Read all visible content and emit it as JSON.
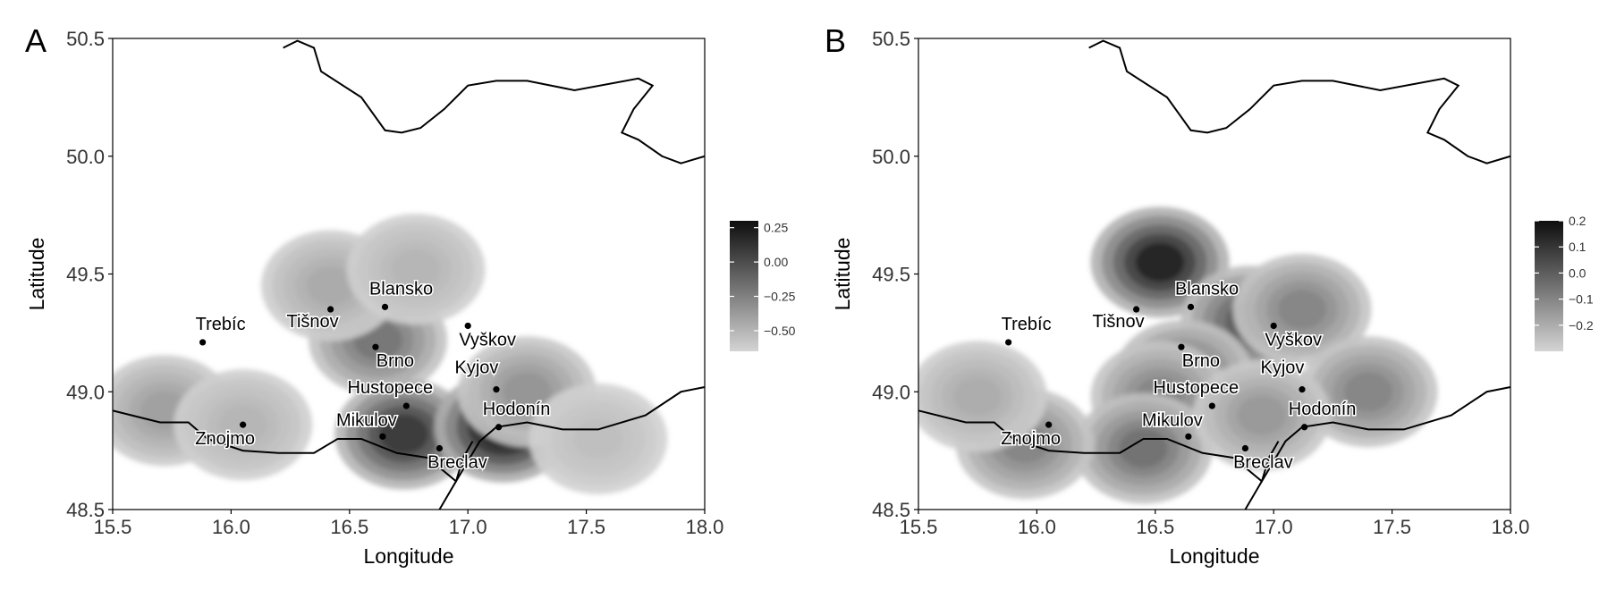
{
  "chart_data": [
    {
      "type": "heatmap",
      "panel_label": "A",
      "xlabel": "Longitude",
      "ylabel": "Latitude",
      "xlim": [
        15.5,
        18.0
      ],
      "ylim": [
        48.5,
        50.5
      ],
      "x_ticks": [
        "15.5",
        "16.0",
        "16.5",
        "17.0",
        "17.5",
        "18.0"
      ],
      "y_ticks": [
        "48.5",
        "49.0",
        "49.5",
        "50.0",
        "50.5"
      ],
      "grid": false,
      "legend": {
        "placement": "right",
        "range": [
          -0.65,
          0.3
        ],
        "ticks": [
          {
            "value": 0.25,
            "label": "0.25"
          },
          {
            "value": 0.0,
            "label": "0.00"
          },
          {
            "value": -0.25,
            "label": "−0.25"
          },
          {
            "value": -0.5,
            "label": "−0.50"
          }
        ]
      },
      "cities": [
        {
          "name": "Trebíc",
          "lon": 15.88,
          "lat": 49.21
        },
        {
          "name": "Tišnov",
          "lon": 16.42,
          "lat": 49.35
        },
        {
          "name": "Blansko",
          "lon": 16.65,
          "lat": 49.36
        },
        {
          "name": "Brno",
          "lon": 16.61,
          "lat": 49.19
        },
        {
          "name": "Vyškov",
          "lon": 17.0,
          "lat": 49.28
        },
        {
          "name": "Kyjov",
          "lon": 17.12,
          "lat": 49.01
        },
        {
          "name": "Hustopece",
          "lon": 16.74,
          "lat": 48.94
        },
        {
          "name": "Hodonín",
          "lon": 17.13,
          "lat": 48.85
        },
        {
          "name": "Znojmo",
          "lon": 16.05,
          "lat": 48.86
        },
        {
          "name": "Mikulov",
          "lon": 16.64,
          "lat": 48.81
        },
        {
          "name": "Breclav",
          "lon": 16.88,
          "lat": 48.76
        }
      ],
      "density_peaks": [
        {
          "lon": 16.62,
          "lat": 49.22,
          "value": -0.2
        },
        {
          "lon": 16.73,
          "lat": 48.82,
          "value": 0.1
        },
        {
          "lon": 17.15,
          "lat": 48.85,
          "value": 0.3
        },
        {
          "lon": 16.42,
          "lat": 49.45,
          "value": -0.45
        },
        {
          "lon": 16.78,
          "lat": 49.52,
          "value": -0.5
        },
        {
          "lon": 17.25,
          "lat": 49.0,
          "value": -0.35
        },
        {
          "lon": 15.72,
          "lat": 48.92,
          "value": -0.4
        },
        {
          "lon": 17.55,
          "lat": 48.8,
          "value": -0.55
        },
        {
          "lon": 16.05,
          "lat": 48.86,
          "value": -0.5
        }
      ]
    },
    {
      "type": "heatmap",
      "panel_label": "B",
      "xlabel": "Longitude",
      "ylabel": "Latitude",
      "xlim": [
        15.5,
        18.0
      ],
      "ylim": [
        48.5,
        50.5
      ],
      "x_ticks": [
        "15.5",
        "16.0",
        "16.5",
        "17.0",
        "17.5",
        "18.0"
      ],
      "y_ticks": [
        "48.5",
        "49.0",
        "49.5",
        "50.0",
        "50.5"
      ],
      "grid": false,
      "legend": {
        "placement": "right",
        "range": [
          -0.3,
          0.2
        ],
        "ticks": [
          {
            "value": 0.2,
            "label": "0.2"
          },
          {
            "value": 0.1,
            "label": "0.1"
          },
          {
            "value": 0.0,
            "label": "0.0"
          },
          {
            "value": -0.1,
            "label": "−0.1"
          },
          {
            "value": -0.2,
            "label": "−0.2"
          }
        ]
      },
      "cities": [
        {
          "name": "Trebíc",
          "lon": 15.88,
          "lat": 49.21
        },
        {
          "name": "Tišnov",
          "lon": 16.42,
          "lat": 49.35
        },
        {
          "name": "Blansko",
          "lon": 16.65,
          "lat": 49.36
        },
        {
          "name": "Brno",
          "lon": 16.61,
          "lat": 49.19
        },
        {
          "name": "Vyškov",
          "lon": 17.0,
          "lat": 49.28
        },
        {
          "name": "Kyjov",
          "lon": 17.12,
          "lat": 49.01
        },
        {
          "name": "Hustopece",
          "lon": 16.74,
          "lat": 48.94
        },
        {
          "name": "Hodonín",
          "lon": 17.13,
          "lat": 48.85
        },
        {
          "name": "Znojmo",
          "lon": 16.05,
          "lat": 48.86
        },
        {
          "name": "Mikulov",
          "lon": 16.64,
          "lat": 48.81
        },
        {
          "name": "Breclav",
          "lon": 16.88,
          "lat": 48.76
        }
      ],
      "density_peaks": [
        {
          "lon": 16.52,
          "lat": 49.55,
          "value": 0.15
        },
        {
          "lon": 16.9,
          "lat": 49.3,
          "value": 0.0
        },
        {
          "lon": 17.12,
          "lat": 49.35,
          "value": -0.1
        },
        {
          "lon": 16.62,
          "lat": 49.07,
          "value": -0.05
        },
        {
          "lon": 16.52,
          "lat": 48.98,
          "value": -0.1
        },
        {
          "lon": 16.45,
          "lat": 48.76,
          "value": -0.05
        },
        {
          "lon": 15.95,
          "lat": 48.78,
          "value": -0.1
        },
        {
          "lon": 17.4,
          "lat": 49.0,
          "value": -0.1
        },
        {
          "lon": 15.75,
          "lat": 48.98,
          "value": -0.2
        },
        {
          "lon": 16.95,
          "lat": 48.9,
          "value": -0.15
        }
      ]
    }
  ]
}
